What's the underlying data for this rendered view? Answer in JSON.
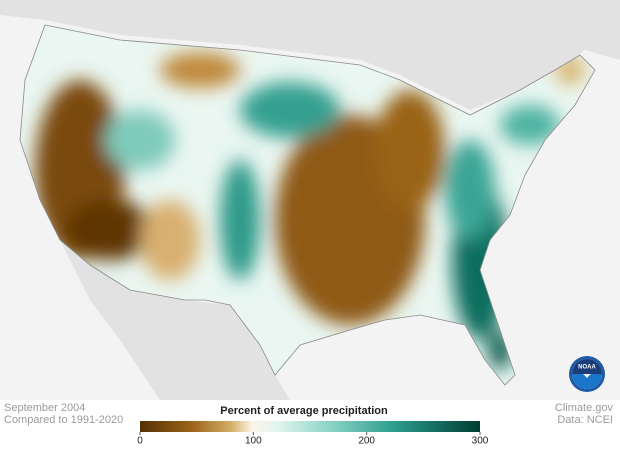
{
  "caption": {
    "date": "September 2004",
    "baseline": "Compared to 1991-2020"
  },
  "credits": {
    "site": "Climate.gov",
    "source": "Data: NCEI"
  },
  "logo": {
    "text": "NOAA"
  },
  "legend": {
    "title": "Percent of average precipitation",
    "range": [
      0,
      300
    ],
    "ticks": [
      0,
      100,
      200,
      300
    ]
  }
}
